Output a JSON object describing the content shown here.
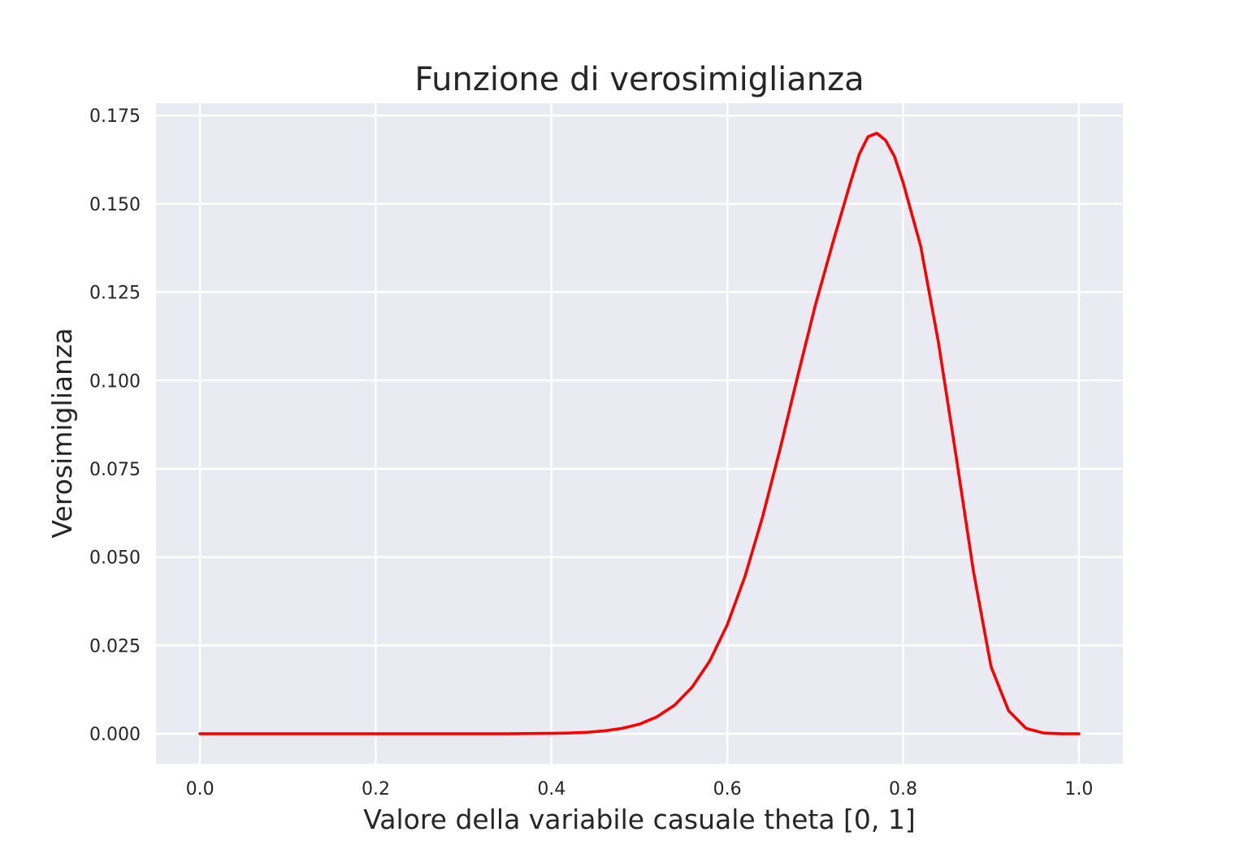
{
  "chart_data": {
    "type": "line",
    "title": "Funzione di verosimiglianza",
    "xlabel": "Valore della variabile casuale theta [0, 1]",
    "ylabel": "Verosimiglianza",
    "xlim": [
      -0.05,
      1.05
    ],
    "ylim": [
      -0.0085,
      0.1785
    ],
    "xticks": [
      0.0,
      0.2,
      0.4,
      0.6,
      0.8,
      1.0
    ],
    "xtick_labels": [
      "0.0",
      "0.2",
      "0.4",
      "0.6",
      "0.8",
      "1.0"
    ],
    "yticks": [
      0.0,
      0.025,
      0.05,
      0.075,
      0.1,
      0.125,
      0.15,
      0.175
    ],
    "ytick_labels": [
      "0.000",
      "0.025",
      "0.050",
      "0.075",
      "0.100",
      "0.125",
      "0.150",
      "0.175"
    ],
    "grid": true,
    "series": [
      {
        "color": "#ff0000",
        "x": [
          0.0,
          0.05,
          0.1,
          0.15,
          0.2,
          0.25,
          0.3,
          0.35,
          0.4,
          0.42,
          0.44,
          0.46,
          0.48,
          0.5,
          0.52,
          0.54,
          0.56,
          0.58,
          0.6,
          0.62,
          0.64,
          0.66,
          0.68,
          0.7,
          0.72,
          0.74,
          0.75,
          0.76,
          0.77,
          0.78,
          0.79,
          0.8,
          0.82,
          0.84,
          0.86,
          0.88,
          0.9,
          0.92,
          0.94,
          0.96,
          0.98,
          1.0
        ],
        "y": [
          0.0,
          0.0,
          0.0,
          0.0,
          0.0,
          0.0,
          0.0,
          0.0,
          0.0001,
          0.0002,
          0.0004,
          0.0008,
          0.0015,
          0.0027,
          0.0048,
          0.0081,
          0.0132,
          0.0206,
          0.0309,
          0.0445,
          0.0613,
          0.0806,
          0.1012,
          0.1212,
          0.139,
          0.156,
          0.164,
          0.169,
          0.17,
          0.168,
          0.1635,
          0.156,
          0.138,
          0.111,
          0.079,
          0.046,
          0.019,
          0.0065,
          0.0015,
          0.0002,
          0.0,
          0.0
        ]
      }
    ]
  }
}
